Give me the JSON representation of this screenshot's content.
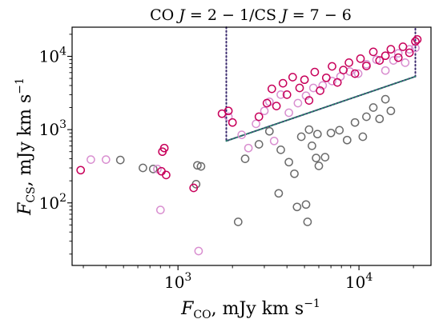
{
  "chart_data": {
    "type": "scatter",
    "title": "CO J = 2 − 1/CS J = 7 − 6",
    "xlabel": "F_CO, mJy km s^-1",
    "ylabel": "F_CS, mJy km s^-1",
    "xscale": "log",
    "yscale": "log",
    "xlim": [
      260,
      25000
    ],
    "ylim": [
      14,
      25000
    ],
    "grid": false,
    "xticks": [
      {
        "value": 1000,
        "label": "10^3"
      },
      {
        "value": 10000,
        "label": "10^4"
      }
    ],
    "yticks": [
      {
        "value": 100,
        "label": "10^2"
      },
      {
        "value": 1000,
        "label": "10^3"
      },
      {
        "value": 10000,
        "label": "10^4"
      }
    ],
    "colors": {
      "grey": "#6b6b6b",
      "pink": "#d98fd0",
      "crimson": "#c8005a",
      "dotted_purple": "#3a2a6e",
      "dotted_teal": "#2e7d6e"
    },
    "series": [
      {
        "color": "#6b6b6b",
        "points": [
          [
            480,
            385
          ],
          [
            640,
            300
          ],
          [
            730,
            290
          ],
          [
            1280,
            325
          ],
          [
            1340,
            315
          ],
          [
            1260,
            180
          ],
          [
            2150,
            55
          ],
          [
            2350,
            400
          ],
          [
            2800,
            630
          ],
          [
            3200,
            950
          ],
          [
            3600,
            135
          ],
          [
            3700,
            530
          ],
          [
            4100,
            360
          ],
          [
            4400,
            250
          ],
          [
            4550,
            88
          ],
          [
            4800,
            800
          ],
          [
            5100,
            95
          ],
          [
            5200,
            55
          ],
          [
            5300,
            1000
          ],
          [
            5500,
            600
          ],
          [
            5800,
            410
          ],
          [
            5900,
            870
          ],
          [
            6000,
            320
          ],
          [
            6500,
            420
          ],
          [
            7000,
            900
          ],
          [
            7800,
            980
          ],
          [
            8600,
            720
          ],
          [
            9500,
            1250
          ],
          [
            10500,
            800
          ],
          [
            11000,
            1500
          ],
          [
            12000,
            2000
          ],
          [
            13000,
            1400
          ],
          [
            14000,
            2600
          ],
          [
            15000,
            1800
          ]
        ]
      },
      {
        "color": "#d98fd0",
        "points": [
          [
            330,
            390
          ],
          [
            400,
            390
          ],
          [
            770,
            290
          ],
          [
            800,
            80
          ],
          [
            1300,
            22
          ],
          [
            1900,
            1500
          ],
          [
            2250,
            850
          ],
          [
            2450,
            560
          ],
          [
            2700,
            1200
          ],
          [
            3000,
            1800
          ],
          [
            3200,
            2400
          ],
          [
            3400,
            700
          ],
          [
            3700,
            3000
          ],
          [
            4100,
            1700
          ],
          [
            4600,
            2300
          ],
          [
            5100,
            2900
          ],
          [
            5600,
            3700
          ],
          [
            6300,
            4000
          ],
          [
            7100,
            4600
          ],
          [
            7900,
            5300
          ],
          [
            8900,
            6200
          ],
          [
            9900,
            5800
          ],
          [
            11000,
            7800
          ],
          [
            12500,
            9000
          ],
          [
            14000,
            6400
          ],
          [
            15500,
            8800
          ],
          [
            16500,
            11000
          ],
          [
            18000,
            8200
          ],
          [
            19000,
            12500
          ],
          [
            20500,
            13000
          ]
        ]
      },
      {
        "color": "#c8005a",
        "points": [
          [
            290,
            280
          ],
          [
            810,
            270
          ],
          [
            820,
            500
          ],
          [
            840,
            560
          ],
          [
            860,
            240
          ],
          [
            1220,
            160
          ],
          [
            1750,
            1650
          ],
          [
            1900,
            1800
          ],
          [
            2000,
            1250
          ],
          [
            2800,
            1500
          ],
          [
            3100,
            2300
          ],
          [
            3300,
            3600
          ],
          [
            3500,
            2100
          ],
          [
            3800,
            4300
          ],
          [
            4000,
            3000
          ],
          [
            4300,
            5200
          ],
          [
            4700,
            3700
          ],
          [
            5000,
            4800
          ],
          [
            5300,
            2500
          ],
          [
            5700,
            6100
          ],
          [
            6100,
            3400
          ],
          [
            6600,
            5100
          ],
          [
            7100,
            7300
          ],
          [
            7600,
            4400
          ],
          [
            8200,
            6500
          ],
          [
            8800,
            8200
          ],
          [
            9500,
            5800
          ],
          [
            10200,
            9300
          ],
          [
            11000,
            7400
          ],
          [
            12000,
            11500
          ],
          [
            13000,
            8800
          ],
          [
            14000,
            10200
          ],
          [
            15000,
            12500
          ],
          [
            16500,
            9600
          ],
          [
            17500,
            13500
          ],
          [
            19000,
            11200
          ],
          [
            20500,
            16000
          ],
          [
            21000,
            17000
          ]
        ]
      }
    ],
    "reference_lines": [
      {
        "style": "dotted",
        "color": "#3a2a6e",
        "points": [
          [
            1850,
            25000
          ],
          [
            1850,
            700
          ],
          [
            20500,
            5300
          ],
          [
            20500,
            25000
          ]
        ]
      },
      {
        "style": "dotted",
        "color": "#2e7d6e",
        "points": [
          [
            1850,
            700
          ],
          [
            20500,
            5300
          ]
        ]
      }
    ]
  }
}
